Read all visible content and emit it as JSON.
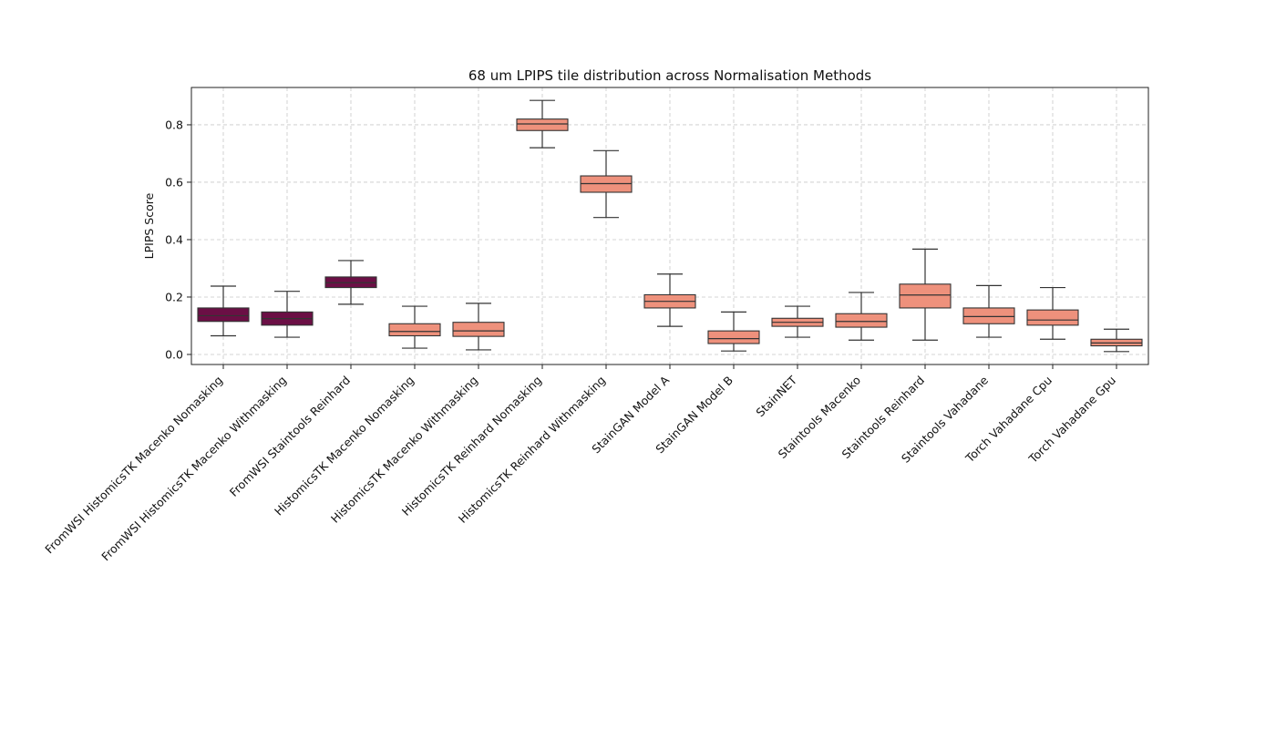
{
  "chart_data": {
    "type": "box",
    "title": "68 um LPIPS tile distribution across Normalisation Methods",
    "xlabel": "",
    "ylabel": "LPIPS Score",
    "ylim": [
      -0.035,
      0.93
    ],
    "yticks": [
      0.0,
      0.2,
      0.4,
      0.6,
      0.8
    ],
    "ytick_labels": [
      "0.0",
      "0.2",
      "0.4",
      "0.6",
      "0.8"
    ],
    "grid": true,
    "colors": {
      "fromwsi": "#6b0f45",
      "other": "#ee917c"
    },
    "categories": [
      "FromWSI HistomicsTK Macenko Nomasking",
      "FromWSI HistomicsTK Macenko Withmasking",
      "FromWSI Staintools Reinhard",
      "HistomicsTK Macenko Nomasking",
      "HistomicsTK Macenko Withmasking",
      "HistomicsTK Reinhard Nomasking",
      "HistomicsTK Reinhard Withmasking",
      "StainGAN Model A",
      "StainGAN Model B",
      "StainNET",
      "Staintools Macenko",
      "Staintools Reinhard",
      "Staintools Vahadane",
      "Torch Vahadane Cpu",
      "Torch Vahadane Gpu"
    ],
    "boxes": [
      {
        "whislo": 0.065,
        "q1": 0.115,
        "med": 0.135,
        "q3": 0.162,
        "whishi": 0.238,
        "group": "fromwsi"
      },
      {
        "whislo": 0.06,
        "q1": 0.102,
        "med": 0.125,
        "q3": 0.148,
        "whishi": 0.22,
        "group": "fromwsi"
      },
      {
        "whislo": 0.175,
        "q1": 0.233,
        "med": 0.25,
        "q3": 0.27,
        "whishi": 0.327,
        "group": "fromwsi"
      },
      {
        "whislo": 0.022,
        "q1": 0.065,
        "med": 0.08,
        "q3": 0.107,
        "whishi": 0.168,
        "group": "other"
      },
      {
        "whislo": 0.016,
        "q1": 0.063,
        "med": 0.082,
        "q3": 0.112,
        "whishi": 0.178,
        "group": "other"
      },
      {
        "whislo": 0.72,
        "q1": 0.78,
        "med": 0.803,
        "q3": 0.82,
        "whishi": 0.885,
        "group": "other"
      },
      {
        "whislo": 0.477,
        "q1": 0.565,
        "med": 0.595,
        "q3": 0.622,
        "whishi": 0.71,
        "group": "other"
      },
      {
        "whislo": 0.098,
        "q1": 0.162,
        "med": 0.185,
        "q3": 0.208,
        "whishi": 0.28,
        "group": "other"
      },
      {
        "whislo": 0.012,
        "q1": 0.038,
        "med": 0.055,
        "q3": 0.082,
        "whishi": 0.148,
        "group": "other"
      },
      {
        "whislo": 0.06,
        "q1": 0.098,
        "med": 0.112,
        "q3": 0.126,
        "whishi": 0.168,
        "group": "other"
      },
      {
        "whislo": 0.05,
        "q1": 0.095,
        "med": 0.115,
        "q3": 0.142,
        "whishi": 0.216,
        "group": "other"
      },
      {
        "whislo": 0.05,
        "q1": 0.162,
        "med": 0.207,
        "q3": 0.245,
        "whishi": 0.367,
        "group": "other"
      },
      {
        "whislo": 0.06,
        "q1": 0.107,
        "med": 0.132,
        "q3": 0.162,
        "whishi": 0.24,
        "group": "other"
      },
      {
        "whislo": 0.053,
        "q1": 0.102,
        "med": 0.12,
        "q3": 0.155,
        "whishi": 0.233,
        "group": "other"
      },
      {
        "whislo": 0.01,
        "q1": 0.03,
        "med": 0.04,
        "q3": 0.053,
        "whishi": 0.088,
        "group": "other"
      }
    ]
  }
}
